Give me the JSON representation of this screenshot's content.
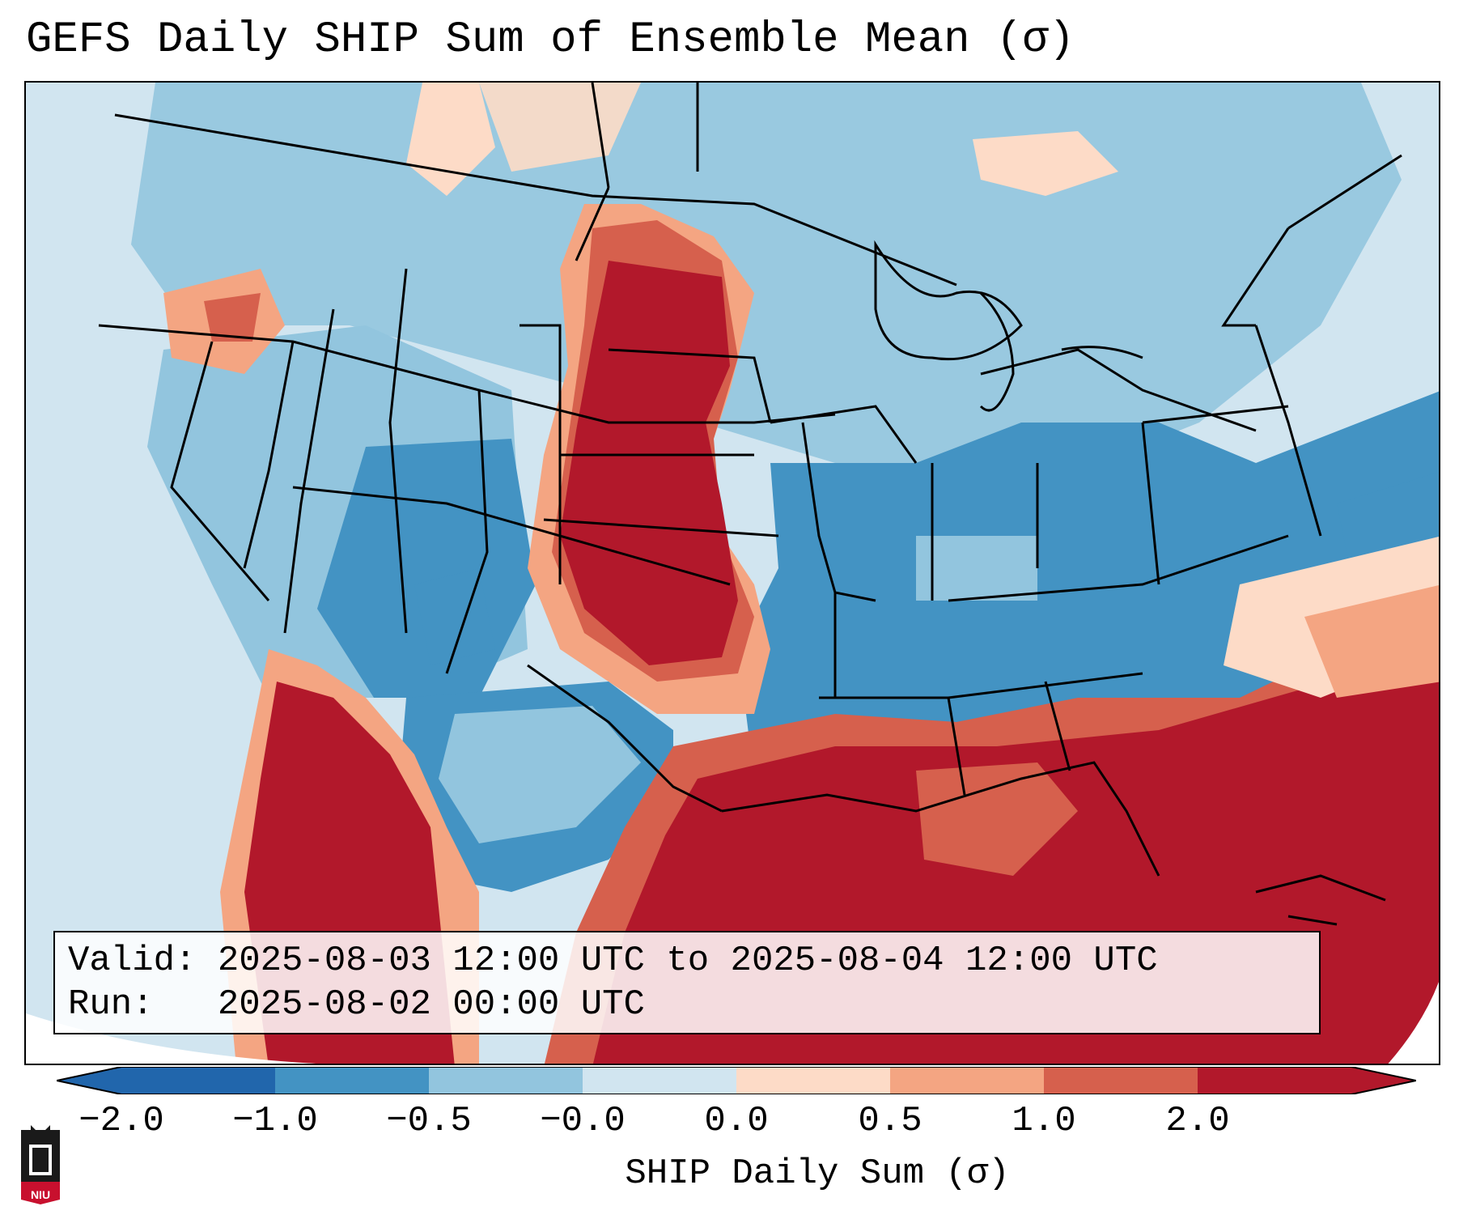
{
  "title": "GEFS Daily SHIP Sum of Ensemble Mean (σ)",
  "info": {
    "valid_label": "Valid:",
    "valid_value": "2025-08-03 12:00 UTC to 2025-08-04 12:00 UTC",
    "run_label": "Run:",
    "run_value": "2025-08-02 00:00 UTC"
  },
  "colorbar": {
    "label": "SHIP Daily Sum (σ)",
    "ticks": [
      "−2.0",
      "−1.0",
      "−0.5",
      "−0.0",
      "0.0",
      "0.5",
      "1.0",
      "2.0"
    ],
    "colors": [
      "#2166ac",
      "#4393c3",
      "#92c5de",
      "#d1e5f0",
      "#fddbc7",
      "#f4a582",
      "#d6604d",
      "#b2182b"
    ],
    "extend": "both"
  },
  "logo": {
    "text": "NIU",
    "colors": {
      "shield": "#c8102e",
      "tower": "#1a1a1a"
    }
  },
  "map_colors": {
    "background": "#d1e5f0",
    "state_lines": "#000000"
  }
}
